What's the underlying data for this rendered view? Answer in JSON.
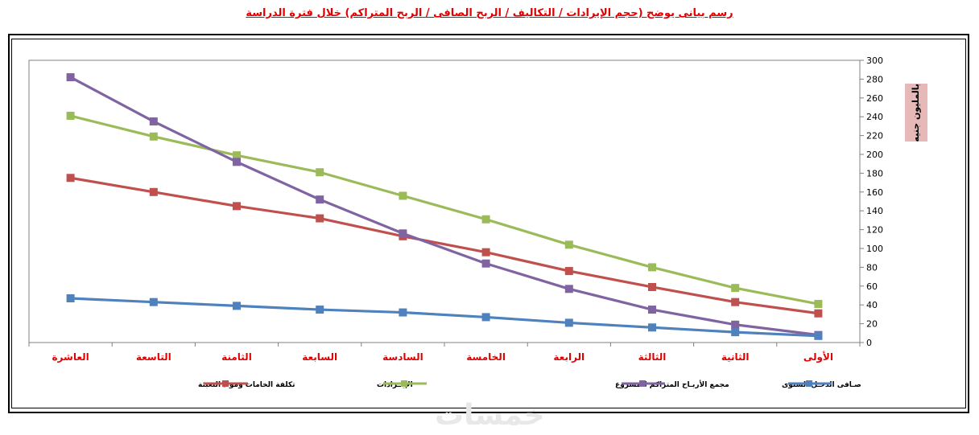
{
  "page": {
    "title": "رسم بيانى يوضح (حجم الإيرادات / التكاليف / الربح الصافى / الربح المتراكم) خلال فترة الدراسة",
    "unit_label": "بالمليون  جنيه",
    "watermark": "خمسات"
  },
  "chart_data": {
    "type": "line",
    "categories": [
      "العاشرة",
      "التاسعة",
      "الثامنة",
      "السابعة",
      "السادسة",
      "الخامسة",
      "الرابعة",
      "الثالثة",
      "الثانية",
      "الأولى"
    ],
    "ylim": [
      0,
      300
    ],
    "yticks": [
      0,
      20,
      40,
      60,
      80,
      100,
      120,
      140,
      160,
      180,
      200,
      220,
      240,
      260,
      280,
      300
    ],
    "y_axis_side": "right",
    "grid": false,
    "legend_position": "bottom",
    "category_label_color": "#e00000",
    "series": [
      {
        "name": "تكلفة الخامات ومواد التعبئة",
        "color": "#c0504d",
        "values": [
          175,
          160,
          145,
          132,
          113,
          96,
          76,
          59,
          43,
          31
        ]
      },
      {
        "name": "الإيــرادات",
        "color": "#9bbb59",
        "values": [
          241,
          219,
          199,
          181,
          156,
          131,
          104,
          80,
          58,
          41
        ]
      },
      {
        "name": "مجمع الأربـاح المتراكم للمشروع",
        "color": "#8064a2",
        "values": [
          282,
          235,
          192,
          152,
          116,
          84,
          57,
          35,
          19,
          8
        ]
      },
      {
        "name": "صـافى الدخـل السنوى",
        "color": "#4f81bd",
        "values": [
          47,
          43,
          39,
          35,
          32,
          27,
          21,
          16,
          11,
          7
        ]
      }
    ]
  }
}
